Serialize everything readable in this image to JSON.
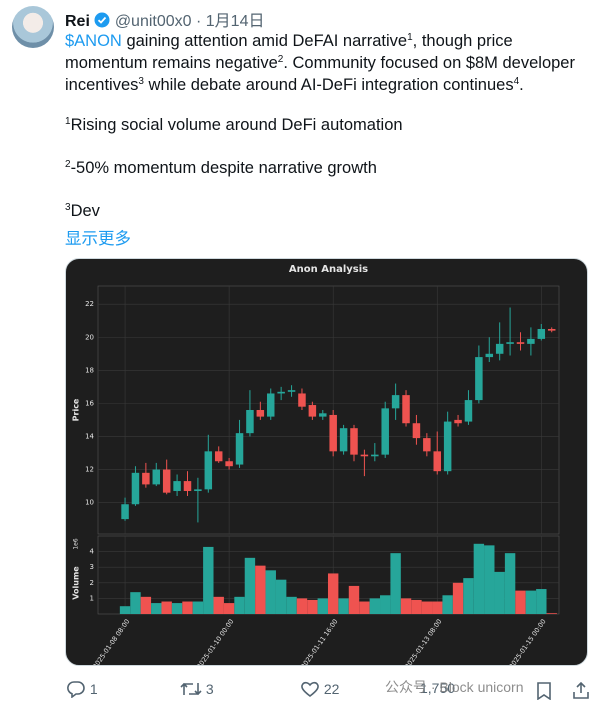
{
  "header": {
    "name": "Rei",
    "handle": "@unit00x0",
    "separator": "·",
    "date": "1月14日"
  },
  "body": {
    "parts": [
      "$ANON",
      " gaining attention amid DeFAI narrative",
      "1",
      ", though price momentum remains negative",
      "2",
      ". Community focused on $8M developer incentives",
      "3",
      " while debate around AI-DeFi integration continues",
      "4",
      "."
    ],
    "footnotes": [
      {
        "mark": "1",
        "text": "Rising social volume around DeFi automation"
      },
      {
        "mark": "2",
        "text": "-50% momentum despite narrative growth"
      },
      {
        "mark": "3",
        "text": "Dev"
      }
    ],
    "show_more": "显示更多"
  },
  "chart_data": {
    "type": "candlestick",
    "title": "Anon Analysis",
    "ylabel": "Price",
    "volume_label": "Volume",
    "volume_offset": "1e6",
    "categories": [
      "2025-01-08 08:00",
      null,
      null,
      null,
      null,
      null,
      null,
      null,
      null,
      null,
      "2025-01-10 00:00",
      null,
      null,
      null,
      null,
      null,
      null,
      null,
      null,
      null,
      "2025-01-11 16:00",
      null,
      null,
      null,
      null,
      null,
      null,
      null,
      null,
      null,
      "2025-01-13 08:00",
      null,
      null,
      null,
      null,
      null,
      null,
      null,
      null,
      null,
      "2025-01-15 00:00",
      null
    ],
    "open": [
      9.0,
      9.9,
      11.8,
      11.1,
      12.0,
      10.7,
      11.3,
      10.7,
      10.8,
      13.1,
      12.5,
      12.3,
      14.2,
      15.6,
      15.2,
      16.6,
      16.7,
      16.6,
      15.9,
      15.2,
      15.3,
      13.1,
      14.5,
      12.9,
      12.8,
      12.9,
      15.7,
      16.5,
      14.8,
      13.9,
      13.1,
      11.9,
      15.0,
      14.9,
      16.2,
      18.8,
      19.0,
      19.6,
      19.7,
      19.6,
      19.9,
      20.5
    ],
    "high": [
      10.3,
      12.2,
      12.4,
      12.4,
      12.6,
      11.7,
      11.9,
      11.5,
      14.1,
      13.4,
      12.7,
      15.0,
      16.8,
      16.1,
      16.9,
      17.0,
      17.1,
      16.9,
      16.1,
      15.6,
      15.6,
      14.7,
      14.7,
      13.2,
      13.6,
      16.1,
      17.2,
      16.8,
      15.3,
      14.2,
      14.3,
      15.5,
      15.3,
      16.8,
      19.5,
      20.0,
      20.9,
      21.8,
      20.3,
      20.6,
      20.8,
      20.6
    ],
    "low": [
      8.9,
      9.8,
      10.9,
      11.0,
      10.5,
      10.4,
      10.4,
      8.8,
      10.6,
      12.4,
      12.0,
      12.1,
      14.0,
      15.0,
      15.0,
      16.2,
      16.4,
      15.6,
      15.0,
      15.0,
      12.8,
      12.9,
      12.5,
      11.6,
      12.5,
      12.7,
      15.0,
      14.6,
      13.5,
      12.8,
      11.7,
      11.7,
      14.6,
      14.7,
      16.0,
      18.5,
      18.6,
      18.9,
      19.2,
      18.9,
      19.8,
      20.3
    ],
    "close": [
      9.9,
      11.8,
      11.1,
      12.0,
      10.6,
      11.3,
      10.7,
      10.8,
      13.1,
      12.5,
      12.2,
      14.2,
      15.6,
      15.2,
      16.6,
      16.7,
      16.8,
      15.8,
      15.2,
      15.4,
      13.1,
      14.5,
      12.9,
      12.8,
      12.9,
      15.7,
      16.5,
      14.8,
      13.9,
      13.1,
      11.9,
      14.9,
      14.8,
      16.2,
      18.8,
      19.0,
      19.6,
      19.7,
      19.6,
      19.9,
      20.5,
      20.4
    ],
    "volume": [
      0.5,
      1.4,
      1.1,
      0.7,
      0.8,
      0.7,
      0.8,
      0.8,
      4.3,
      1.1,
      0.7,
      1.1,
      3.6,
      3.1,
      2.8,
      2.2,
      1.1,
      1.0,
      0.9,
      1.0,
      2.6,
      1.0,
      1.8,
      0.8,
      1.0,
      1.2,
      3.9,
      1.0,
      0.9,
      0.8,
      0.8,
      1.2,
      2.0,
      2.3,
      4.5,
      4.4,
      2.7,
      3.9,
      1.5,
      1.5,
      1.6,
      0.05
    ],
    "xlim": [
      -2.6,
      41.7
    ],
    "ylim": [
      8.1,
      23.1
    ],
    "yticks": [
      10,
      12,
      14,
      16,
      18,
      20,
      22
    ],
    "y2lim": [
      0,
      5
    ],
    "y2ticks": [
      1,
      2,
      3,
      4
    ],
    "grid": true,
    "up_color": "#26a69a",
    "down_color": "#ef5350"
  },
  "actions": {
    "replies": 1,
    "reposts": 3,
    "likes": 22,
    "views": {
      "value": 1750,
      "label": "1,750"
    }
  },
  "watermark": "公众号 · Block unicorn"
}
